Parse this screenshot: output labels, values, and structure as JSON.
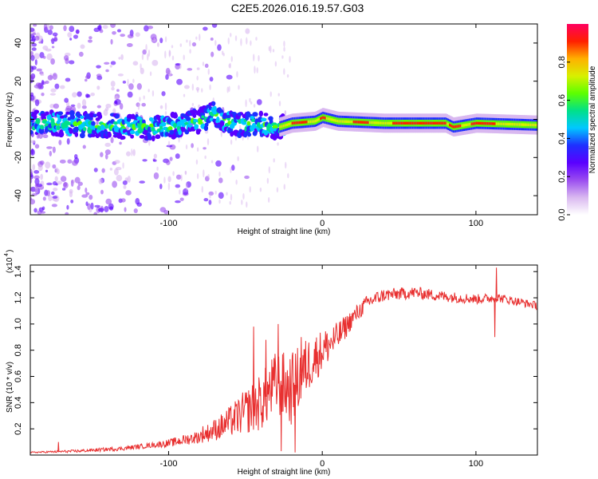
{
  "figure": {
    "title": "C2E5.2026.016.19.57.G03"
  },
  "chart_data": [
    {
      "type": "heatmap",
      "name": "spectrogram",
      "xlabel": "Height of straight line (km)",
      "ylabel": "Frequency (Hz)",
      "xlim": [
        -190,
        140
      ],
      "ylim": [
        -50,
        50
      ],
      "xticks": [
        -100,
        0,
        100
      ],
      "xtick_labels": [
        "-100",
        "0",
        "100"
      ],
      "yticks": [
        -40,
        -20,
        0,
        20,
        40
      ],
      "ytick_labels": [
        "-40",
        "-20",
        "0",
        "20",
        "40"
      ],
      "grid": false,
      "colorbar": {
        "label": "Normalized spectral amplitude",
        "range": [
          0,
          1
        ],
        "ticks": [
          0.0,
          0.2,
          0.4,
          0.6,
          0.8
        ],
        "tick_labels": [
          "0.0",
          "0.2",
          "0.4",
          "0.6",
          "0.8"
        ],
        "colors": [
          "#ffffff",
          "#d9b8f0",
          "#9a4cf0",
          "#5a00ff",
          "#1e30ff",
          "#00c8ff",
          "#00e08a",
          "#5cff00",
          "#d8f000",
          "#ffb000",
          "#ff2000",
          "#ff0060"
        ]
      },
      "ridge": {
        "description_free": true,
        "center_hz": [
          {
            "x": -180,
            "y": -2
          },
          {
            "x": -150,
            "y": -3
          },
          {
            "x": -120,
            "y": -4
          },
          {
            "x": -100,
            "y": -4
          },
          {
            "x": -80,
            "y": -1
          },
          {
            "x": -70,
            "y": 3
          },
          {
            "x": -60,
            "y": -2
          },
          {
            "x": -40,
            "y": -3
          },
          {
            "x": -28,
            "y": -4
          },
          {
            "x": -20,
            "y": -2
          },
          {
            "x": -5,
            "y": -1
          },
          {
            "x": 0,
            "y": 1
          },
          {
            "x": 10,
            "y": -1
          },
          {
            "x": 40,
            "y": -2
          },
          {
            "x": 80,
            "y": -2
          },
          {
            "x": 85,
            "y": -4
          },
          {
            "x": 100,
            "y": -2
          },
          {
            "x": 140,
            "y": -3
          }
        ],
        "peak_segments_km": [
          [
            -20,
            -10
          ],
          [
            -2,
            2
          ],
          [
            20,
            30
          ],
          [
            45,
            80
          ],
          [
            82,
            90
          ],
          [
            96,
            112
          ]
        ]
      }
    },
    {
      "type": "line",
      "name": "snr",
      "xlabel": "Height of straight line (km)",
      "ylabel": "SNR (10 * v/v)",
      "multiplier_label": "(x10",
      "multiplier_exp": "4",
      "xlim": [
        -190,
        140
      ],
      "ylim": [
        0,
        1.45
      ],
      "xticks": [
        -100,
        0,
        100
      ],
      "xtick_labels": [
        "-100",
        "0",
        "100"
      ],
      "yticks": [
        0.2,
        0.4,
        0.6,
        0.8,
        1.0,
        1.2,
        1.4
      ],
      "ytick_labels": [
        "0.2",
        "0.4",
        "0.6",
        "0.8",
        "1.0",
        "1.2",
        "1.4"
      ],
      "grid": false,
      "color": "#e83030",
      "series": [
        {
          "name": "SNR",
          "envelope": [
            {
              "x": -190,
              "y": 0.02
            },
            {
              "x": -160,
              "y": 0.03
            },
            {
              "x": -130,
              "y": 0.05
            },
            {
              "x": -100,
              "y": 0.09
            },
            {
              "x": -80,
              "y": 0.14
            },
            {
              "x": -65,
              "y": 0.22
            },
            {
              "x": -50,
              "y": 0.33
            },
            {
              "x": -40,
              "y": 0.4
            },
            {
              "x": -30,
              "y": 0.55
            },
            {
              "x": -20,
              "y": 0.5
            },
            {
              "x": -10,
              "y": 0.68
            },
            {
              "x": 0,
              "y": 0.8
            },
            {
              "x": 10,
              "y": 0.9
            },
            {
              "x": 20,
              "y": 1.05
            },
            {
              "x": 30,
              "y": 1.17
            },
            {
              "x": 40,
              "y": 1.22
            },
            {
              "x": 60,
              "y": 1.24
            },
            {
              "x": 80,
              "y": 1.21
            },
            {
              "x": 100,
              "y": 1.19
            },
            {
              "x": 115,
              "y": 1.2
            },
            {
              "x": 140,
              "y": 1.14
            }
          ],
          "noise": [
            {
              "x": -190,
              "a": 0.005
            },
            {
              "x": -110,
              "a": 0.02
            },
            {
              "x": -80,
              "a": 0.05
            },
            {
              "x": -60,
              "a": 0.12
            },
            {
              "x": -40,
              "a": 0.22
            },
            {
              "x": -20,
              "a": 0.28
            },
            {
              "x": 0,
              "a": 0.16
            },
            {
              "x": 20,
              "a": 0.07
            },
            {
              "x": 40,
              "a": 0.05
            },
            {
              "x": 140,
              "a": 0.03
            }
          ],
          "spikes": [
            {
              "x": -172,
              "y": 0.1
            },
            {
              "x": -78,
              "y": 0.22
            },
            {
              "x": -45,
              "y": 0.98
            },
            {
              "x": -37,
              "y": 0.88
            },
            {
              "x": -29,
              "y": 1.0
            },
            {
              "x": -27,
              "y": 0.03
            },
            {
              "x": -18,
              "y": 0.02
            },
            {
              "x": -14,
              "y": 0.9
            },
            {
              "x": 112,
              "y": 0.9
            },
            {
              "x": 113,
              "y": 1.43
            }
          ]
        }
      ]
    }
  ]
}
